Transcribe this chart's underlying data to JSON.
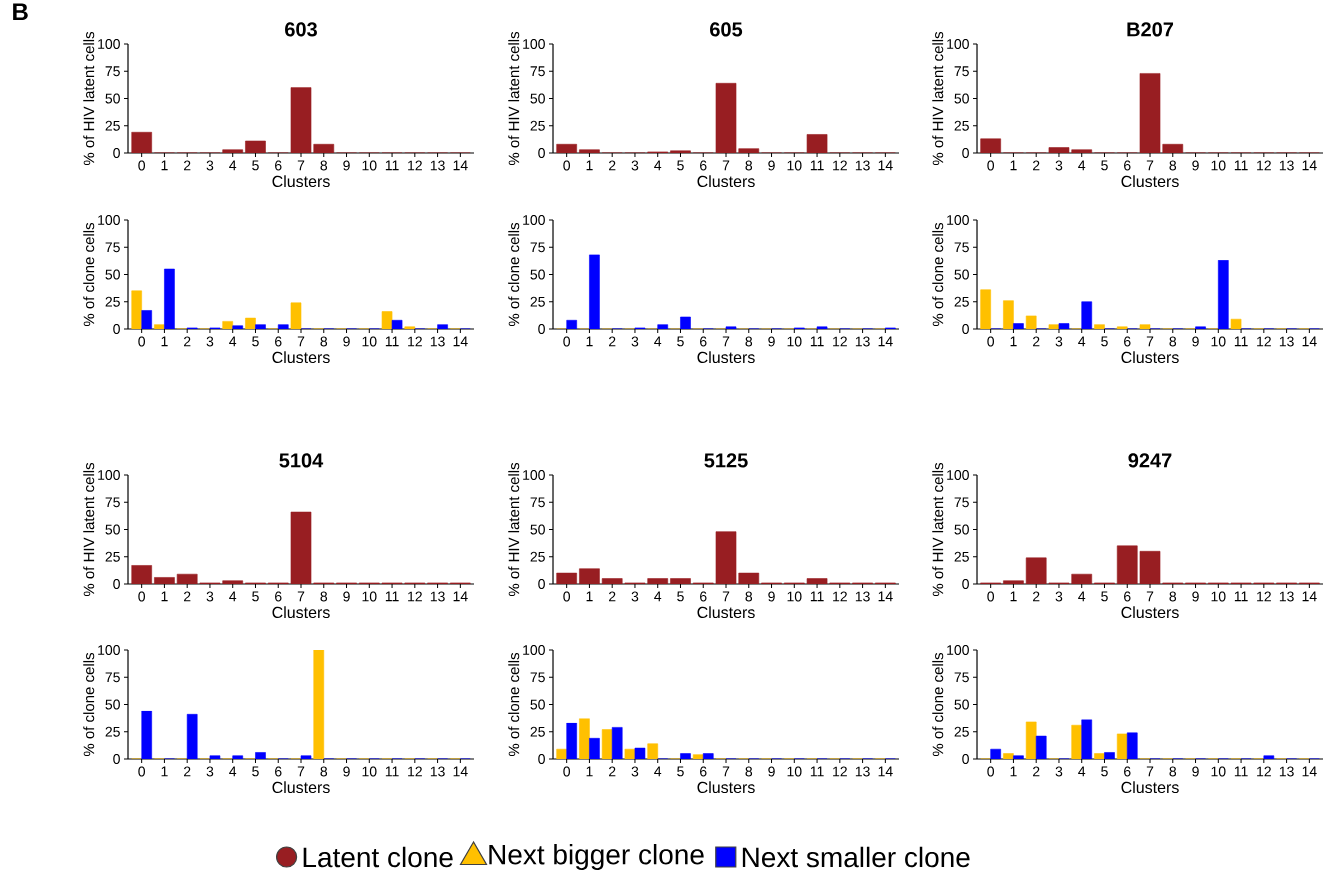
{
  "chart_data": [
    {
      "type": "bar",
      "title": "603",
      "xlabel": "Clusters",
      "ylabel": "% of HIV latent cells",
      "annotations": [
        "B"
      ],
      "legend": "bottom",
      "categories": [
        "0",
        "1",
        "2",
        "3",
        "4",
        "5",
        "6",
        "7",
        "8",
        "9",
        "10",
        "11",
        "12",
        "13",
        "14"
      ],
      "ylim": [
        0,
        100
      ],
      "yticks": [
        0,
        25,
        50,
        75,
        100
      ],
      "series": [
        {
          "name": "Latent clone",
          "color": "#981e22",
          "values": [
            19,
            0,
            0,
            0,
            3,
            11,
            0,
            60,
            8,
            0,
            0,
            0,
            0,
            0,
            0
          ]
        }
      ]
    },
    {
      "type": "bar",
      "title": "605",
      "xlabel": "Clusters",
      "ylabel": "% of HIV latent cells",
      "categories": [
        "0",
        "1",
        "2",
        "3",
        "4",
        "5",
        "6",
        "7",
        "8",
        "9",
        "10",
        "11",
        "12",
        "13",
        "14"
      ],
      "ylim": [
        0,
        100
      ],
      "yticks": [
        0,
        25,
        50,
        75,
        100
      ],
      "series": [
        {
          "color": "#981e22",
          "values": [
            8,
            3,
            0,
            0,
            1,
            2,
            0,
            64,
            4,
            0,
            0,
            17,
            0,
            0,
            0
          ]
        }
      ]
    },
    {
      "type": "bar",
      "title": "B207",
      "xlabel": "Clusters",
      "ylabel": "% of HIV latent cells",
      "categories": [
        "0",
        "1",
        "2",
        "3",
        "4",
        "5",
        "6",
        "7",
        "8",
        "9",
        "10",
        "11",
        "12",
        "13",
        "14"
      ],
      "ylim": [
        0,
        100
      ],
      "yticks": [
        0,
        25,
        50,
        75,
        100
      ],
      "series": [
        {
          "color": "#981e22",
          "values": [
            13,
            0,
            0,
            5,
            3,
            0,
            0,
            73,
            8,
            0,
            0,
            0,
            0,
            0,
            0
          ]
        }
      ]
    },
    {
      "type": "bar",
      "xlabel": "Clusters",
      "ylabel": "% of clone cells",
      "legend": "bottom",
      "categories": [
        "0",
        "1",
        "2",
        "3",
        "4",
        "5",
        "6",
        "7",
        "8",
        "9",
        "10",
        "11",
        "12",
        "13",
        "14"
      ],
      "ylim": [
        0,
        100
      ],
      "yticks": [
        0,
        25,
        50,
        75,
        100
      ],
      "series": [
        {
          "name": "Next bigger clone",
          "color": "#ffc000",
          "values": [
            35,
            4,
            0,
            0,
            7,
            10,
            0,
            24,
            0,
            0,
            0,
            16,
            2,
            0,
            0
          ]
        },
        {
          "name": "Next smaller clone",
          "color": "#0000ff",
          "values": [
            17,
            55,
            1,
            1,
            3,
            4,
            4,
            0,
            0,
            0,
            0,
            8,
            0,
            4,
            0
          ]
        }
      ]
    },
    {
      "type": "bar",
      "xlabel": "Clusters",
      "ylabel": "% of clone cells",
      "categories": [
        "0",
        "1",
        "2",
        "3",
        "4",
        "5",
        "6",
        "7",
        "8",
        "9",
        "10",
        "11",
        "12",
        "13",
        "14"
      ],
      "ylim": [
        0,
        100
      ],
      "yticks": [
        0,
        25,
        50,
        75,
        100
      ],
      "series": [
        {
          "color": "#ffc000",
          "values": [
            0,
            0,
            0,
            0,
            0,
            0,
            0,
            0,
            0,
            0,
            0,
            0,
            0,
            0,
            0
          ]
        },
        {
          "color": "#0000ff",
          "values": [
            8,
            68,
            0,
            1,
            4,
            11,
            0,
            2,
            0,
            0,
            1,
            2,
            0,
            0,
            1
          ]
        }
      ]
    },
    {
      "type": "bar",
      "xlabel": "Clusters",
      "ylabel": "% of clone cells",
      "categories": [
        "0",
        "1",
        "2",
        "3",
        "4",
        "5",
        "6",
        "7",
        "8",
        "9",
        "10",
        "11",
        "12",
        "13",
        "14"
      ],
      "ylim": [
        0,
        100
      ],
      "yticks": [
        0,
        25,
        50,
        75,
        100
      ],
      "series": [
        {
          "color": "#ffc000",
          "values": [
            36,
            26,
            12,
            4,
            0,
            4,
            2,
            4,
            0,
            0,
            0,
            9,
            0,
            0,
            0
          ]
        },
        {
          "color": "#0000ff",
          "values": [
            0,
            5,
            0,
            5,
            25,
            0,
            0,
            0,
            0,
            2,
            63,
            0,
            0,
            0,
            0
          ]
        }
      ]
    },
    {
      "type": "bar",
      "title": "5104",
      "xlabel": "Clusters",
      "ylabel": "% of HIV latent cells",
      "categories": [
        "0",
        "1",
        "2",
        "3",
        "4",
        "5",
        "6",
        "7",
        "8",
        "9",
        "10",
        "11",
        "12",
        "13",
        "14"
      ],
      "ylim": [
        0,
        100
      ],
      "yticks": [
        0,
        25,
        50,
        75,
        100
      ],
      "series": [
        {
          "color": "#981e22",
          "values": [
            17,
            6,
            9,
            1,
            3,
            1,
            1,
            66,
            1,
            1,
            1,
            1,
            1,
            1,
            1
          ]
        }
      ]
    },
    {
      "type": "bar",
      "title": "5125",
      "xlabel": "Clusters",
      "ylabel": "% of HIV latent cells",
      "categories": [
        "0",
        "1",
        "2",
        "3",
        "4",
        "5",
        "6",
        "7",
        "8",
        "9",
        "10",
        "11",
        "12",
        "13",
        "14"
      ],
      "ylim": [
        0,
        100
      ],
      "yticks": [
        0,
        25,
        50,
        75,
        100
      ],
      "series": [
        {
          "color": "#981e22",
          "values": [
            10,
            14,
            5,
            1,
            5,
            5,
            1,
            48,
            10,
            1,
            1,
            5,
            1,
            1,
            1
          ]
        }
      ]
    },
    {
      "type": "bar",
      "title": "9247",
      "xlabel": "Clusters",
      "ylabel": "% of HIV latent cells",
      "categories": [
        "0",
        "1",
        "2",
        "3",
        "4",
        "5",
        "6",
        "7",
        "8",
        "9",
        "10",
        "11",
        "12",
        "13",
        "14"
      ],
      "ylim": [
        0,
        100
      ],
      "yticks": [
        0,
        25,
        50,
        75,
        100
      ],
      "series": [
        {
          "color": "#981e22",
          "values": [
            1,
            3,
            24,
            1,
            9,
            1,
            35,
            30,
            1,
            1,
            1,
            1,
            1,
            1,
            1
          ]
        }
      ]
    },
    {
      "type": "bar",
      "xlabel": "Clusters",
      "ylabel": "% of clone cells",
      "categories": [
        "0",
        "1",
        "2",
        "3",
        "4",
        "5",
        "6",
        "7",
        "8",
        "9",
        "10",
        "11",
        "12",
        "13",
        "14"
      ],
      "ylim": [
        0,
        100
      ],
      "yticks": [
        0,
        25,
        50,
        75,
        100
      ],
      "series": [
        {
          "color": "#ffc000",
          "values": [
            0,
            0,
            0,
            0,
            0,
            0,
            0,
            0,
            100,
            0,
            0,
            0,
            0,
            0,
            0
          ]
        },
        {
          "color": "#0000ff",
          "values": [
            44,
            0,
            41,
            3,
            3,
            6,
            0,
            3,
            0,
            0,
            0,
            0,
            0,
            0,
            0
          ]
        }
      ]
    },
    {
      "type": "bar",
      "xlabel": "Clusters",
      "ylabel": "% of clone cells",
      "categories": [
        "0",
        "1",
        "2",
        "3",
        "4",
        "5",
        "6",
        "7",
        "8",
        "9",
        "10",
        "11",
        "12",
        "13",
        "14"
      ],
      "ylim": [
        0,
        100
      ],
      "yticks": [
        0,
        25,
        50,
        75,
        100
      ],
      "series": [
        {
          "color": "#ffc000",
          "values": [
            9,
            37,
            27,
            9,
            14,
            0,
            4,
            0,
            0,
            0,
            0,
            0,
            0,
            0,
            0
          ]
        },
        {
          "color": "#0000ff",
          "values": [
            33,
            19,
            29,
            10,
            0,
            5,
            5,
            0,
            0,
            0,
            0,
            0,
            0,
            0,
            0
          ]
        }
      ]
    },
    {
      "type": "bar",
      "xlabel": "Clusters",
      "ylabel": "% of clone cells",
      "categories": [
        "0",
        "1",
        "2",
        "3",
        "4",
        "5",
        "6",
        "7",
        "8",
        "9",
        "10",
        "11",
        "12",
        "13",
        "14"
      ],
      "ylim": [
        0,
        100
      ],
      "yticks": [
        0,
        25,
        50,
        75,
        100
      ],
      "series": [
        {
          "color": "#ffc000",
          "values": [
            0,
            5,
            34,
            0,
            31,
            5,
            23,
            0,
            0,
            0,
            0,
            0,
            0,
            0,
            0
          ]
        },
        {
          "color": "#0000ff",
          "values": [
            9,
            3,
            21,
            0,
            36,
            6,
            24,
            0,
            0,
            0,
            0,
            0,
            3,
            0,
            0
          ]
        }
      ]
    }
  ]
}
